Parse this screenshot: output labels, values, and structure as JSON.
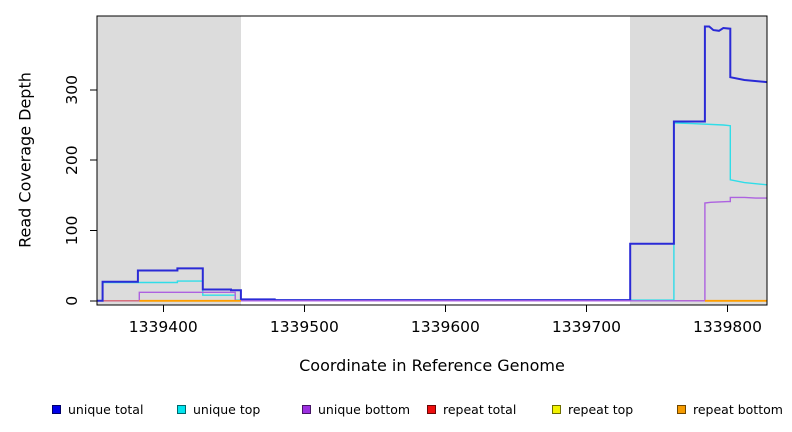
{
  "chart_data": {
    "type": "line",
    "subtype": "step-coverage",
    "title": "",
    "xlabel": "Coordinate in Reference Genome",
    "ylabel": "Read Coverage Depth",
    "xlim": [
      1339353,
      1339828
    ],
    "ylim": [
      -6,
      405
    ],
    "x_ticks": [
      1339400,
      1339500,
      1339600,
      1339700,
      1339800
    ],
    "y_ticks": [
      0,
      100,
      200,
      300
    ],
    "grid": false,
    "legend_position": "bottom",
    "plot_background": "#ffffff",
    "border_color": "#000000",
    "shaded_regions": [
      {
        "from": 1339353,
        "to": 1339455,
        "color": "#dcdcdc"
      },
      {
        "from": 1339731,
        "to": 1339828,
        "color": "#dcdcdc"
      }
    ],
    "series": [
      {
        "key": "repeat-top",
        "name": "repeat top",
        "color": "#f0f000",
        "width": 1.2,
        "segments": [
          [
            [
              1339353,
              0
            ],
            [
              1339828,
              0
            ]
          ]
        ]
      },
      {
        "key": "repeat-total",
        "name": "repeat total",
        "color": "#d4607f",
        "width": 1.3,
        "segments": [
          [
            [
              1339353,
              0
            ],
            [
              1339828,
              0
            ]
          ]
        ]
      },
      {
        "key": "unique-top",
        "name": "unique top",
        "color": "#30dde8",
        "width": 1.4,
        "segments": [
          [
            [
              1339353,
              0
            ],
            [
              1339357,
              0
            ],
            [
              1339357,
              26
            ],
            [
              1339410,
              26
            ],
            [
              1339410,
              28
            ],
            [
              1339428,
              28
            ],
            [
              1339428,
              8
            ],
            [
              1339451,
              8
            ],
            [
              1339451,
              1
            ],
            [
              1339762,
              1
            ],
            [
              1339762,
              253
            ],
            [
              1339775,
              252
            ],
            [
              1339797,
              250
            ],
            [
              1339802,
              249
            ],
            [
              1339802,
              172
            ],
            [
              1339812,
              168
            ],
            [
              1339828,
              165
            ]
          ]
        ]
      },
      {
        "key": "unique-total",
        "name": "unique total",
        "color": "#2a2ad6",
        "width": 2,
        "segments": [
          [
            [
              1339353,
              0
            ],
            [
              1339357,
              0
            ],
            [
              1339357,
              27
            ],
            [
              1339382,
              27
            ],
            [
              1339382,
              43
            ],
            [
              1339410,
              43
            ],
            [
              1339410,
              46
            ],
            [
              1339428,
              46
            ],
            [
              1339428,
              16
            ],
            [
              1339448,
              16
            ],
            [
              1339448,
              15
            ],
            [
              1339455,
              15
            ],
            [
              1339455,
              2
            ],
            [
              1339479,
              2
            ],
            [
              1339479,
              1
            ],
            [
              1339731,
              1
            ],
            [
              1339731,
              81
            ],
            [
              1339762,
              81
            ],
            [
              1339762,
              255
            ],
            [
              1339784,
              255
            ],
            [
              1339784,
              390
            ],
            [
              1339787,
              390
            ],
            [
              1339790,
              385
            ],
            [
              1339794,
              384
            ],
            [
              1339797,
              388
            ],
            [
              1339802,
              387
            ],
            [
              1339802,
              318
            ],
            [
              1339812,
              314
            ],
            [
              1339828,
              311
            ]
          ]
        ]
      },
      {
        "key": "unique-bottom",
        "name": "unique bottom",
        "color": "#ad62e0",
        "width": 1.4,
        "segments": [
          [
            [
              1339383,
              0
            ],
            [
              1339383,
              12
            ],
            [
              1339451,
              12
            ],
            [
              1339451,
              0
            ],
            [
              1339784,
              0
            ],
            [
              1339784,
              139
            ],
            [
              1339788,
              140
            ],
            [
              1339800,
              141
            ],
            [
              1339802,
              141
            ],
            [
              1339802,
              147
            ],
            [
              1339812,
              147
            ],
            [
              1339820,
              146
            ],
            [
              1339828,
              146
            ]
          ]
        ]
      },
      {
        "key": "repeat-bottom",
        "name": "repeat bottom",
        "color": "#ff9e00",
        "width": 1.8,
        "segments": [
          [
            [
              1339383,
              0
            ],
            [
              1339455,
              0
            ]
          ],
          [
            [
              1339784,
              0
            ],
            [
              1339828,
              0
            ]
          ]
        ]
      }
    ]
  },
  "legend": {
    "items": [
      {
        "key": "unique-total",
        "label": "unique total",
        "color": "#0000e8"
      },
      {
        "key": "unique-top",
        "label": "unique top",
        "color": "#00e4ee"
      },
      {
        "key": "unique-bottom",
        "label": "unique bottom",
        "color": "#9c2fe0"
      },
      {
        "key": "repeat-total",
        "label": "repeat total",
        "color": "#ee0e0e"
      },
      {
        "key": "repeat-top",
        "label": "repeat top",
        "color": "#f2f200"
      },
      {
        "key": "repeat-bottom",
        "label": "repeat bottom",
        "color": "#f59b00"
      }
    ]
  }
}
